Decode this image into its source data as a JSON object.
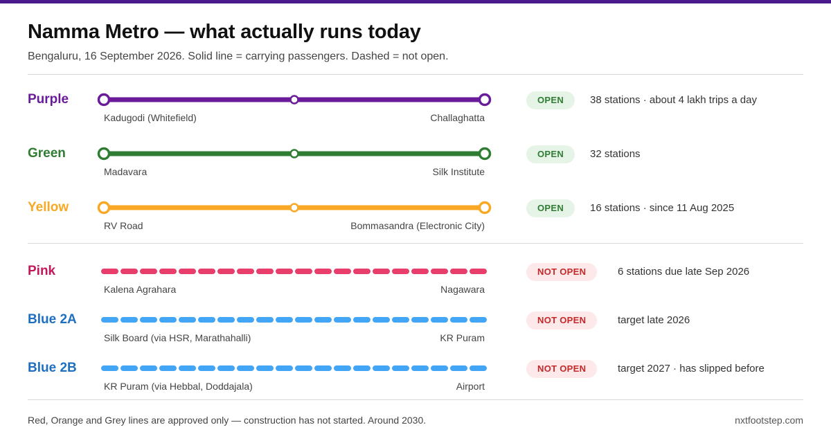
{
  "header": {
    "title": "Namma Metro — what actually runs today",
    "subtitle": "Bengaluru, 16 September 2026. Solid line = carrying passengers. Dashed = not open."
  },
  "open_lines": [
    {
      "name": "Purple",
      "color": "#6a1b9a",
      "from": "Kadugodi (Whitefield)",
      "to": "Challaghatta",
      "status": "OPEN",
      "info": "38 stations · about 4 lakh trips a day"
    },
    {
      "name": "Green",
      "color": "#2e7d32",
      "from": "Madavara",
      "to": "Silk Institute",
      "status": "OPEN",
      "info": "32 stations"
    },
    {
      "name": "Yellow",
      "color": "#f9a825",
      "from": "RV Road",
      "to": "Bommasandra (Electronic City)",
      "status": "OPEN",
      "info": "16 stations · since 11 Aug 2025"
    }
  ],
  "planned_lines": [
    {
      "name": "Pink",
      "color": "#e83e6c",
      "from": "Kalena Agrahara",
      "to": "Nagawara",
      "status": "NOT OPEN",
      "info": "6 stations due late Sep 2026"
    },
    {
      "name": "Blue 2A",
      "color": "#42a5f5",
      "from": "Silk Board (via HSR, Marathahalli)",
      "to": "KR Puram",
      "status": "NOT OPEN",
      "info": "target late 2026"
    },
    {
      "name": "Blue 2B",
      "color": "#42a5f5",
      "from": "KR Puram (via Hebbal, Doddajala)",
      "to": "Airport",
      "status": "NOT OPEN",
      "info": "target 2027 · has slipped before"
    }
  ],
  "name_colors": {
    "Purple": "#6a1b9a",
    "Green": "#2e7d32",
    "Yellow": "#f9a825",
    "Pink": "#c2185b",
    "Blue 2A": "#1e6fc0",
    "Blue 2B": "#1e6fc0"
  },
  "footer": {
    "note": "Red, Orange and Grey lines are approved only — construction has not started. Around 2030.",
    "credit": "nxtfootstep.com"
  }
}
